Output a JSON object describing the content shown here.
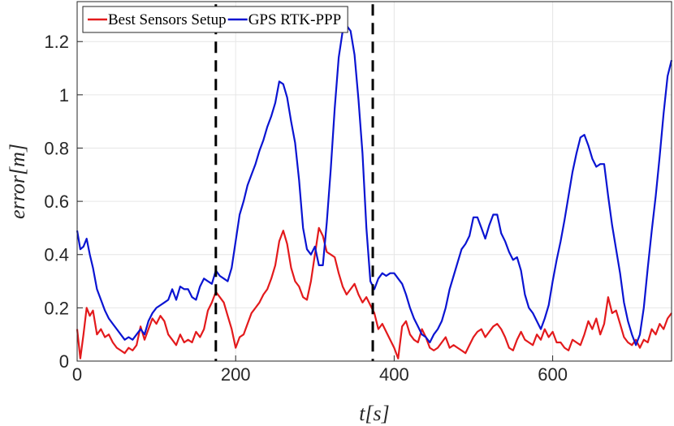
{
  "chart_data": {
    "type": "line",
    "xlabel": "t[s]",
    "ylabel": "error[m]",
    "xlim": [
      0,
      750
    ],
    "ylim": [
      0,
      1.35
    ],
    "xticks": [
      0,
      200,
      400,
      600
    ],
    "yticks": [
      0,
      0.2,
      0.4,
      0.6,
      0.8,
      1,
      1.2
    ],
    "xtick_labels": [
      "0",
      "200",
      "400",
      "600"
    ],
    "ytick_labels": [
      "0",
      "0.2",
      "0.4",
      "0.6",
      "0.8",
      "1",
      "1.2"
    ],
    "grid": true,
    "legend_position": "top-left",
    "vertical_lines": [
      {
        "x": 175,
        "style": "dashed",
        "color": "#000000"
      },
      {
        "x": 373,
        "style": "dashed",
        "color": "#000000"
      }
    ],
    "series": [
      {
        "name": "Best Sensors Setup",
        "color": "#e31a1c",
        "x": [
          0,
          4,
          8,
          12,
          16,
          20,
          25,
          30,
          35,
          40,
          45,
          50,
          55,
          60,
          65,
          70,
          75,
          80,
          85,
          90,
          95,
          100,
          105,
          110,
          115,
          120,
          125,
          130,
          135,
          140,
          145,
          150,
          155,
          160,
          165,
          170,
          175,
          180,
          185,
          190,
          195,
          200,
          205,
          210,
          215,
          220,
          225,
          230,
          235,
          240,
          245,
          250,
          255,
          260,
          265,
          270,
          275,
          280,
          285,
          290,
          295,
          300,
          305,
          310,
          315,
          320,
          325,
          330,
          335,
          340,
          345,
          350,
          355,
          360,
          365,
          370,
          375,
          380,
          385,
          390,
          395,
          400,
          405,
          410,
          415,
          420,
          425,
          430,
          435,
          440,
          445,
          450,
          455,
          460,
          465,
          470,
          475,
          480,
          485,
          490,
          495,
          500,
          505,
          510,
          515,
          520,
          525,
          530,
          535,
          540,
          545,
          550,
          555,
          560,
          565,
          570,
          575,
          580,
          585,
          590,
          595,
          600,
          605,
          610,
          615,
          620,
          625,
          630,
          635,
          640,
          645,
          650,
          655,
          660,
          665,
          670,
          675,
          680,
          685,
          690,
          695,
          700,
          705,
          710,
          715,
          720,
          725,
          730,
          735,
          740,
          745,
          750
        ],
        "values": [
          0.12,
          0.01,
          0.1,
          0.2,
          0.17,
          0.19,
          0.1,
          0.12,
          0.09,
          0.1,
          0.07,
          0.05,
          0.04,
          0.03,
          0.05,
          0.04,
          0.06,
          0.13,
          0.08,
          0.12,
          0.16,
          0.14,
          0.17,
          0.15,
          0.1,
          0.08,
          0.06,
          0.1,
          0.07,
          0.08,
          0.07,
          0.11,
          0.09,
          0.12,
          0.19,
          0.22,
          0.26,
          0.24,
          0.22,
          0.17,
          0.12,
          0.05,
          0.09,
          0.1,
          0.14,
          0.18,
          0.2,
          0.22,
          0.25,
          0.27,
          0.31,
          0.36,
          0.45,
          0.49,
          0.44,
          0.35,
          0.3,
          0.28,
          0.24,
          0.23,
          0.3,
          0.4,
          0.5,
          0.47,
          0.41,
          0.4,
          0.39,
          0.33,
          0.28,
          0.25,
          0.27,
          0.29,
          0.25,
          0.22,
          0.24,
          0.21,
          0.18,
          0.12,
          0.14,
          0.11,
          0.08,
          0.05,
          0.01,
          0.13,
          0.15,
          0.1,
          0.08,
          0.07,
          0.12,
          0.09,
          0.05,
          0.04,
          0.05,
          0.07,
          0.09,
          0.05,
          0.06,
          0.05,
          0.04,
          0.03,
          0.06,
          0.09,
          0.11,
          0.12,
          0.09,
          0.11,
          0.13,
          0.14,
          0.12,
          0.09,
          0.05,
          0.04,
          0.08,
          0.11,
          0.08,
          0.07,
          0.06,
          0.1,
          0.08,
          0.12,
          0.09,
          0.11,
          0.07,
          0.07,
          0.05,
          0.04,
          0.08,
          0.07,
          0.06,
          0.1,
          0.15,
          0.12,
          0.16,
          0.1,
          0.14,
          0.24,
          0.18,
          0.19,
          0.14,
          0.09,
          0.07,
          0.06,
          0.08,
          0.05,
          0.08,
          0.07,
          0.12,
          0.1,
          0.14,
          0.12,
          0.16,
          0.18
        ]
      },
      {
        "name": "GPS RTK-PPP",
        "color": "#0a14d2",
        "x": [
          0,
          4,
          8,
          12,
          16,
          20,
          25,
          30,
          35,
          40,
          45,
          50,
          55,
          60,
          65,
          70,
          75,
          80,
          85,
          90,
          95,
          100,
          105,
          110,
          115,
          120,
          125,
          130,
          135,
          140,
          145,
          150,
          155,
          160,
          165,
          170,
          175,
          180,
          185,
          190,
          195,
          200,
          205,
          210,
          215,
          220,
          225,
          230,
          235,
          240,
          245,
          250,
          255,
          260,
          265,
          270,
          275,
          280,
          285,
          290,
          295,
          300,
          305,
          310,
          315,
          320,
          325,
          330,
          335,
          340,
          345,
          350,
          355,
          360,
          365,
          370,
          375,
          380,
          385,
          390,
          395,
          400,
          405,
          410,
          415,
          420,
          425,
          430,
          435,
          440,
          445,
          450,
          455,
          460,
          465,
          470,
          475,
          480,
          485,
          490,
          495,
          500,
          505,
          510,
          515,
          520,
          525,
          530,
          535,
          540,
          545,
          550,
          555,
          560,
          565,
          570,
          575,
          580,
          585,
          590,
          595,
          600,
          605,
          610,
          615,
          620,
          625,
          630,
          635,
          640,
          645,
          650,
          655,
          660,
          665,
          670,
          675,
          680,
          685,
          690,
          695,
          700,
          705,
          710,
          715,
          720,
          725,
          730,
          735,
          740,
          745,
          750
        ],
        "values": [
          0.49,
          0.42,
          0.43,
          0.46,
          0.4,
          0.35,
          0.27,
          0.23,
          0.19,
          0.16,
          0.14,
          0.12,
          0.1,
          0.08,
          0.09,
          0.08,
          0.1,
          0.12,
          0.1,
          0.15,
          0.18,
          0.2,
          0.21,
          0.22,
          0.23,
          0.27,
          0.23,
          0.28,
          0.27,
          0.27,
          0.24,
          0.23,
          0.28,
          0.31,
          0.3,
          0.29,
          0.34,
          0.32,
          0.31,
          0.3,
          0.35,
          0.45,
          0.55,
          0.6,
          0.66,
          0.7,
          0.74,
          0.79,
          0.83,
          0.88,
          0.92,
          0.97,
          1.05,
          1.04,
          0.99,
          0.9,
          0.82,
          0.68,
          0.5,
          0.42,
          0.4,
          0.43,
          0.36,
          0.36,
          0.52,
          0.72,
          0.95,
          1.14,
          1.24,
          1.26,
          1.24,
          1.15,
          0.98,
          0.78,
          0.5,
          0.3,
          0.27,
          0.31,
          0.33,
          0.32,
          0.33,
          0.33,
          0.31,
          0.29,
          0.25,
          0.2,
          0.16,
          0.13,
          0.1,
          0.09,
          0.07,
          0.1,
          0.12,
          0.15,
          0.2,
          0.27,
          0.32,
          0.37,
          0.42,
          0.44,
          0.47,
          0.54,
          0.54,
          0.5,
          0.46,
          0.51,
          0.55,
          0.55,
          0.48,
          0.45,
          0.41,
          0.38,
          0.39,
          0.34,
          0.25,
          0.2,
          0.18,
          0.15,
          0.12,
          0.16,
          0.21,
          0.3,
          0.38,
          0.45,
          0.53,
          0.62,
          0.71,
          0.78,
          0.84,
          0.85,
          0.81,
          0.76,
          0.73,
          0.74,
          0.74,
          0.62,
          0.51,
          0.42,
          0.33,
          0.22,
          0.15,
          0.1,
          0.06,
          0.1,
          0.2,
          0.35,
          0.49,
          0.62,
          0.77,
          0.93,
          1.07,
          1.13
        ]
      }
    ]
  }
}
